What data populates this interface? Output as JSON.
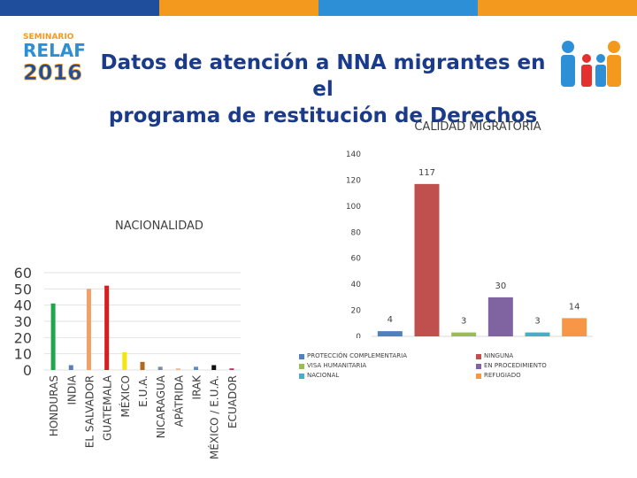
{
  "slide": {
    "title_line1": "Datos de atención a NNA migrantes en el",
    "title_line2": "programa de restitución de Derechos"
  },
  "logo": {
    "line1": "SEMINARIO",
    "line2": "RELAF",
    "line3": "2016"
  },
  "colors": {
    "title": "#1a3a8a",
    "top_bar": [
      "#1f4e9c",
      "#f39a1e",
      "#2d8fd5",
      "#f39a1e"
    ]
  },
  "chart_data": [
    {
      "type": "bar",
      "title": "NACIONALIDAD",
      "categories": [
        "HONDURAS",
        "INDIA",
        "EL SALVADOR",
        "GUATEMALA",
        "MÉXICO",
        "E.U.A.",
        "NICARAGUA",
        "APÁTRIDA",
        "IRAK",
        "MÉXICO / E.U.A.",
        "ECUADOR"
      ],
      "values": [
        41,
        3,
        50,
        52,
        11,
        5,
        2,
        1,
        2,
        3,
        1
      ],
      "colors": [
        "#1fa64a",
        "#5b7fb8",
        "#f0a068",
        "#d81e1e",
        "#f5e60a",
        "#b06a1e",
        "#7a8aa8",
        "#f0b890",
        "#5b8ec8",
        "#111111",
        "#c0306a"
      ],
      "ylim": [
        0,
        60
      ],
      "yticks": [
        0,
        10,
        20,
        30,
        40,
        50,
        60
      ],
      "grid": true,
      "legend": "none"
    },
    {
      "type": "bar",
      "title": "CALIDAD MIGRATORIA",
      "categories": [
        "PROTECCIÓN COMPLEMENTARIA",
        "NINGUNA",
        "VISA HUMANITARIA",
        "EN PROCEDIMIENTO",
        "NACIONAL",
        "REFUGIADO"
      ],
      "values": [
        4,
        117,
        3,
        30,
        3,
        14
      ],
      "colors": [
        "#4f81bd",
        "#c0504d",
        "#9bbb59",
        "#8064a2",
        "#4bacc6",
        "#f79646"
      ],
      "ylim": [
        0,
        140
      ],
      "yticks": [
        0,
        20,
        40,
        60,
        80,
        100,
        120,
        140
      ],
      "grid": true,
      "legend": "bottom"
    }
  ]
}
